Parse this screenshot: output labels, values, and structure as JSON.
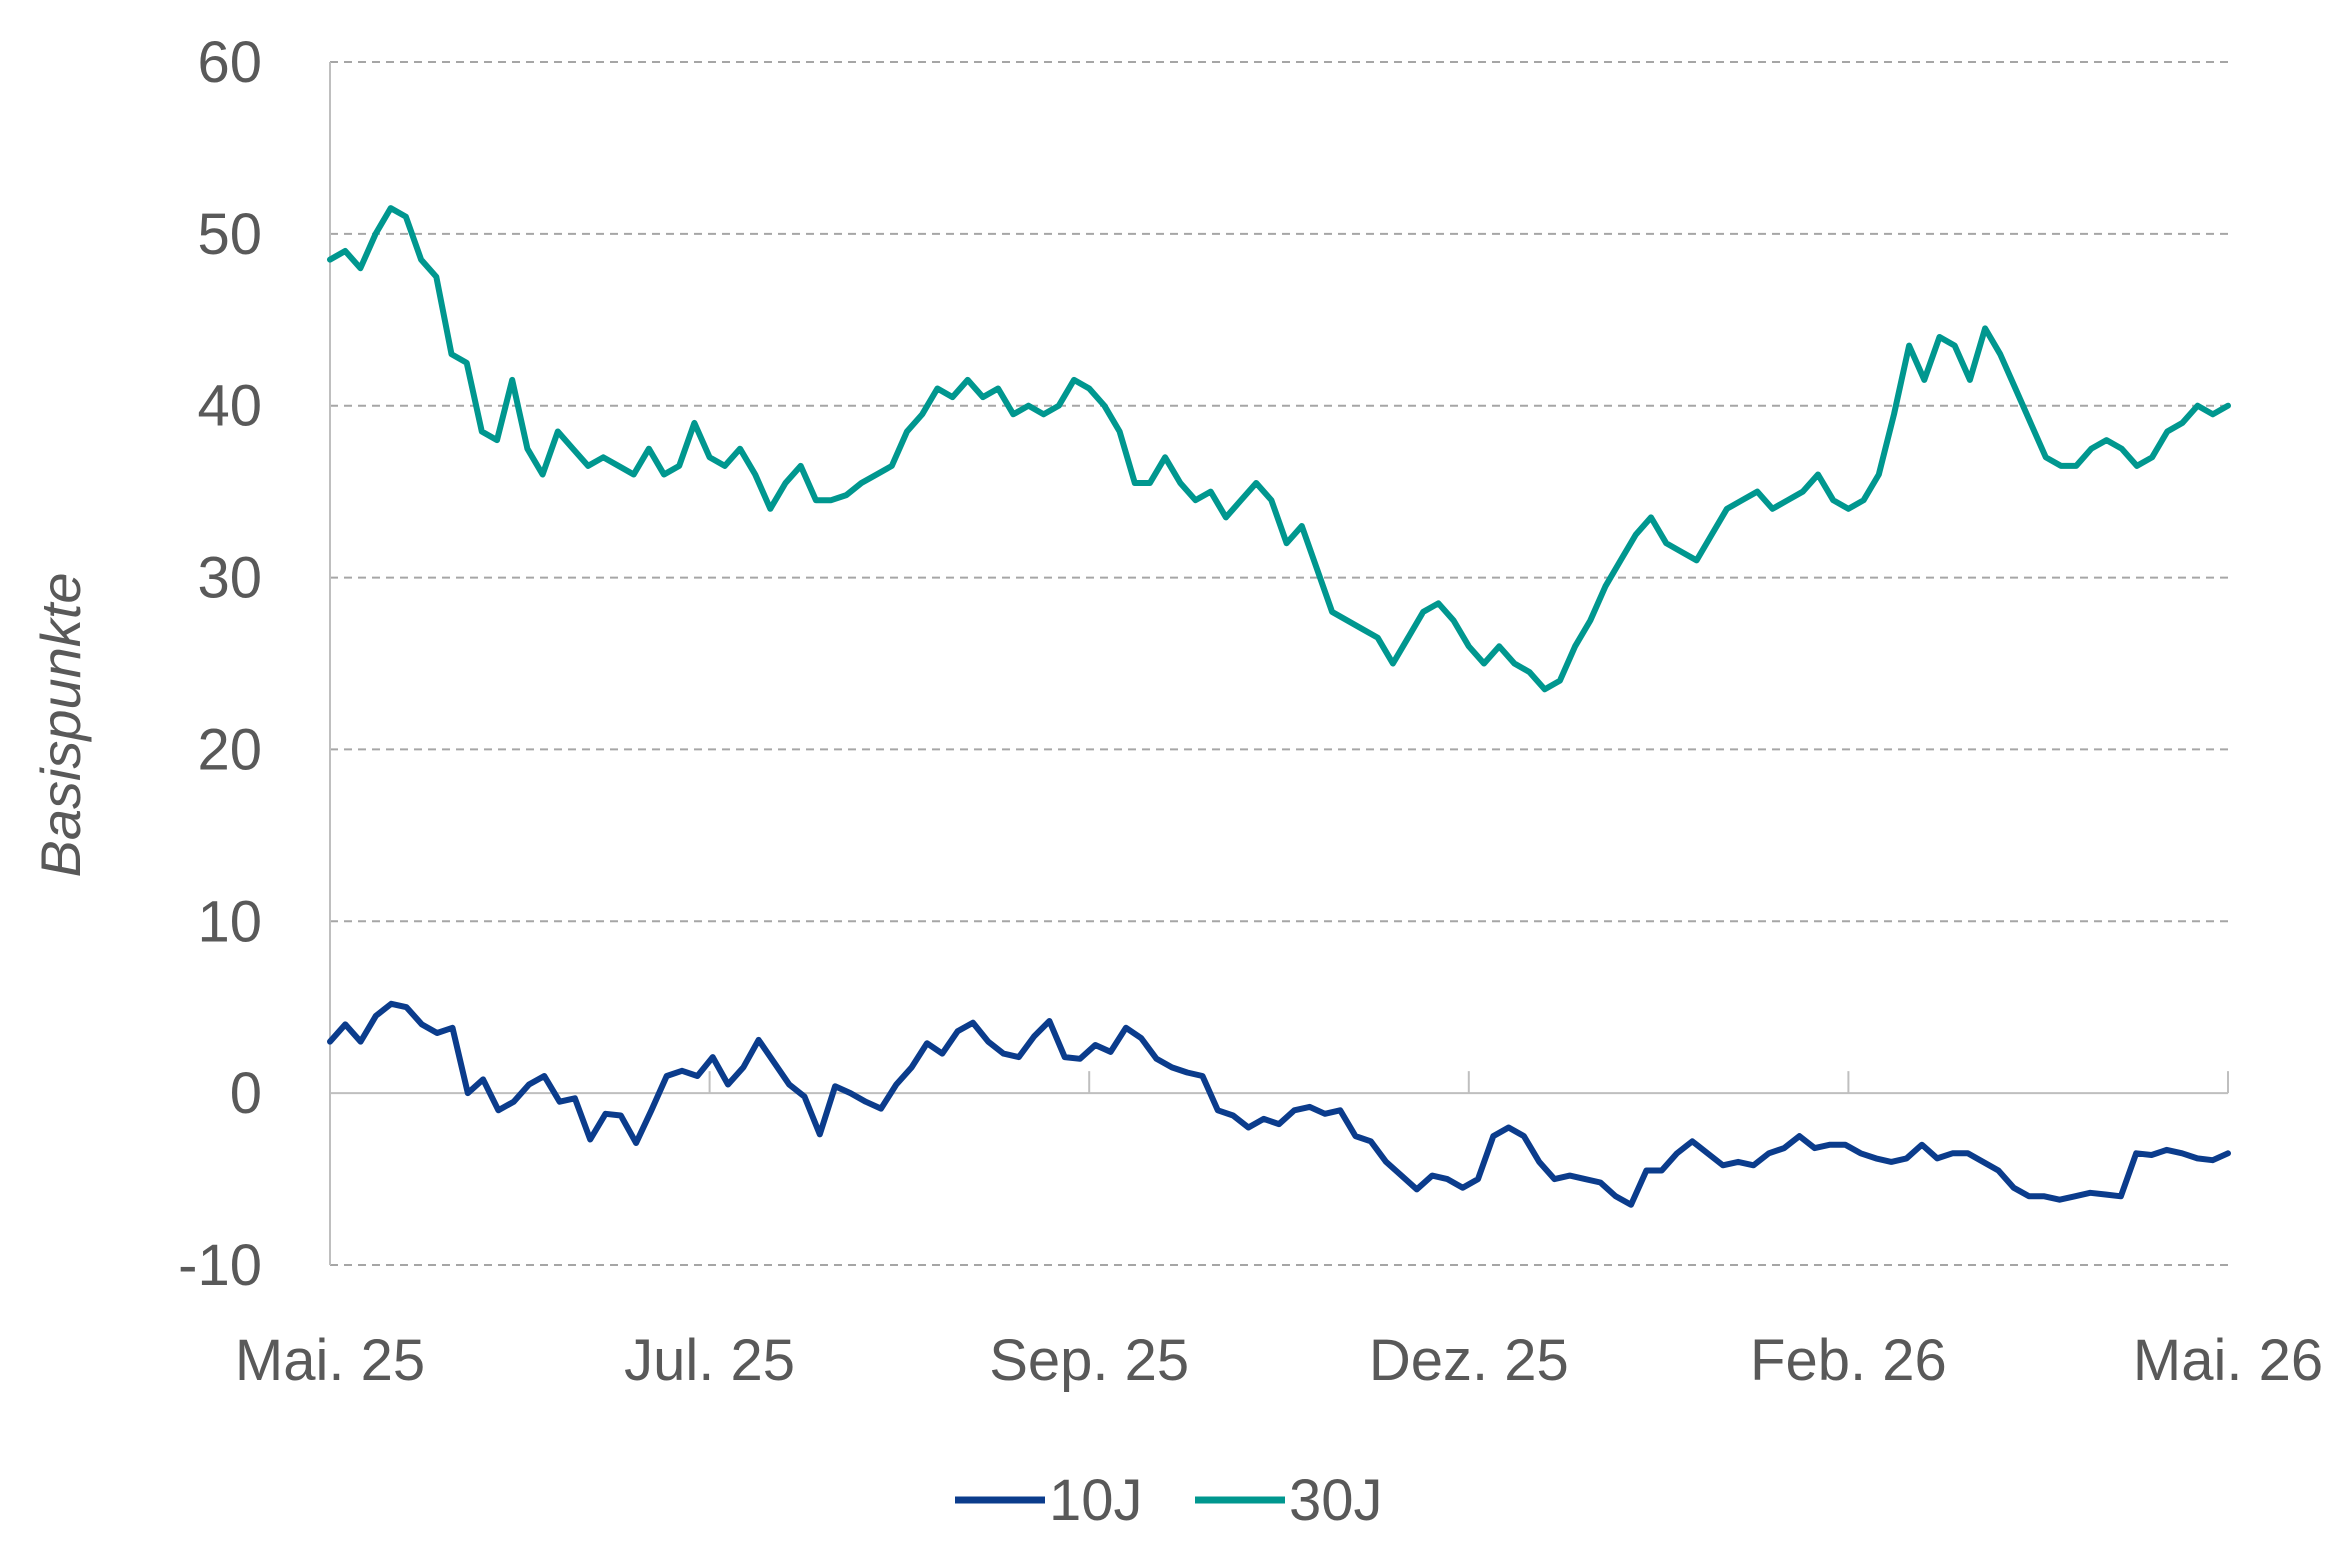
{
  "chart_data": {
    "type": "line",
    "ylabel": "Basispunkte",
    "ylim": [
      -10,
      60
    ],
    "yticks": [
      -10,
      0,
      10,
      20,
      30,
      40,
      50,
      60
    ],
    "ytick_labels": [
      "-10",
      "0",
      "10",
      "20",
      "30",
      "40",
      "50",
      "60"
    ],
    "xticks": [
      "Mai. 25",
      "Jul. 25",
      "Sep. 25",
      "Dez. 25",
      "Feb. 26",
      "Mai. 26"
    ],
    "grid": "horizontal dashed",
    "legend_position": "bottom-center",
    "series": [
      {
        "name": "10J",
        "color": "#0B3C8C",
        "values": [
          3.0,
          4.0,
          3.0,
          4.5,
          5.2,
          5.0,
          4.0,
          3.5,
          3.8,
          0.0,
          0.8,
          -1.0,
          -0.5,
          0.5,
          1.0,
          -0.5,
          -0.3,
          -2.7,
          -1.2,
          -1.3,
          -2.9,
          -1.0,
          1.0,
          1.3,
          1.0,
          2.1,
          0.5,
          1.5,
          3.1,
          1.8,
          0.5,
          -0.2,
          -2.4,
          0.4,
          0.0,
          -0.5,
          -0.9,
          0.5,
          1.5,
          2.9,
          2.3,
          3.6,
          4.1,
          3.0,
          2.3,
          2.1,
          3.3,
          4.2,
          2.1,
          2.0,
          2.8,
          2.4,
          3.8,
          3.2,
          2.0,
          1.5,
          1.2,
          1.0,
          -1.0,
          -1.3,
          -2.0,
          -1.5,
          -1.8,
          -1.0,
          -0.8,
          -1.2,
          -1.0,
          -2.5,
          -2.8,
          -4.0,
          -4.8,
          -5.6,
          -4.8,
          -5.0,
          -5.5,
          -5.0,
          -2.5,
          -2.0,
          -2.5,
          -4.0,
          -5.0,
          -4.8,
          -5.0,
          -5.2,
          -6.0,
          -6.5,
          -4.5,
          -4.5,
          -3.5,
          -2.8,
          -3.5,
          -4.2,
          -4.0,
          -4.2,
          -3.5,
          -3.2,
          -2.5,
          -3.2,
          -3.0,
          -3.0,
          -3.5,
          -3.8,
          -4.0,
          -3.8,
          -3.0,
          -3.8,
          -3.5,
          -3.5,
          -4.0,
          -4.5,
          -5.5,
          -6.0,
          -6.0,
          -6.2,
          -6.0,
          -5.8,
          -5.9,
          -6.0,
          -3.5,
          -3.6,
          -3.3,
          -3.5,
          -3.8,
          -3.9,
          -3.5
        ]
      },
      {
        "name": "30J",
        "color": "#00978F",
        "values": [
          48.5,
          49.0,
          48.0,
          50.0,
          51.5,
          51.0,
          48.5,
          47.5,
          43.0,
          42.5,
          38.5,
          38.0,
          41.5,
          37.5,
          36.0,
          38.5,
          37.5,
          36.5,
          37.0,
          36.5,
          36.0,
          37.5,
          36.0,
          36.5,
          39.0,
          37.0,
          36.5,
          37.5,
          36.0,
          34.0,
          35.5,
          36.5,
          34.5,
          34.5,
          34.8,
          35.5,
          36.0,
          36.5,
          38.5,
          39.5,
          41.0,
          40.5,
          41.5,
          40.5,
          41.0,
          39.5,
          40.0,
          39.5,
          40.0,
          41.5,
          41.0,
          40.0,
          38.5,
          35.5,
          35.5,
          37.0,
          35.5,
          34.5,
          35.0,
          33.5,
          34.5,
          35.5,
          34.5,
          32.0,
          33.0,
          30.5,
          28.0,
          27.5,
          27.0,
          26.5,
          25.0,
          26.5,
          28.0,
          28.5,
          27.5,
          26.0,
          25.0,
          26.0,
          25.0,
          24.5,
          23.5,
          24.0,
          26.0,
          27.5,
          29.5,
          31.0,
          32.5,
          33.5,
          32.0,
          31.5,
          31.0,
          32.5,
          34.0,
          34.5,
          35.0,
          34.0,
          34.5,
          35.0,
          36.0,
          34.5,
          34.0,
          34.5,
          36.0,
          39.5,
          43.5,
          41.5,
          44.0,
          43.5,
          41.5,
          44.5,
          43.0,
          41.0,
          39.0,
          37.0,
          36.5,
          36.5,
          37.5,
          38.0,
          37.5,
          36.5,
          37.0,
          38.5,
          39.0,
          40.0,
          39.5,
          40.0
        ]
      }
    ]
  }
}
